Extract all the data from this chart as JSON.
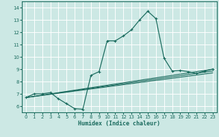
{
  "xlabel": "Humidex (Indice chaleur)",
  "bg_color": "#cce8e4",
  "line_color": "#1a6b5e",
  "grid_color": "#b0d8d2",
  "xlim": [
    -0.5,
    23.5
  ],
  "ylim": [
    5.5,
    14.5
  ],
  "xticks": [
    0,
    1,
    2,
    3,
    4,
    5,
    6,
    7,
    8,
    9,
    10,
    11,
    12,
    13,
    14,
    15,
    16,
    17,
    18,
    19,
    20,
    21,
    22,
    23
  ],
  "yticks": [
    6,
    7,
    8,
    9,
    10,
    11,
    12,
    13,
    14
  ],
  "series": [
    [
      0,
      6.7
    ],
    [
      1,
      7.0
    ],
    [
      2,
      7.0
    ],
    [
      3,
      7.1
    ],
    [
      4,
      6.6
    ],
    [
      5,
      6.2
    ],
    [
      6,
      5.8
    ],
    [
      7,
      5.75
    ],
    [
      8,
      8.5
    ],
    [
      9,
      8.8
    ],
    [
      10,
      11.3
    ],
    [
      11,
      11.3
    ],
    [
      12,
      11.7
    ],
    [
      13,
      12.2
    ],
    [
      14,
      13.0
    ],
    [
      15,
      13.7
    ],
    [
      16,
      13.1
    ],
    [
      17,
      9.9
    ],
    [
      18,
      8.85
    ],
    [
      19,
      8.9
    ],
    [
      20,
      8.8
    ],
    [
      21,
      8.65
    ],
    [
      22,
      8.85
    ],
    [
      23,
      9.0
    ]
  ],
  "straight_lines": [
    [
      [
        0,
        6.7
      ],
      [
        23,
        9.0
      ]
    ],
    [
      [
        0,
        6.7
      ],
      [
        23,
        8.85
      ]
    ],
    [
      [
        0,
        6.7
      ],
      [
        23,
        8.7
      ]
    ]
  ]
}
